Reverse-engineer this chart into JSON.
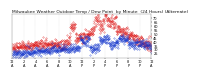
{
  "title": "Milwaukee Weather Outdoor Temp / Dew Point  by Minute  (24 Hours) (Alternate)",
  "title_fontsize": 3.2,
  "bg_color": "#ffffff",
  "plot_bg_color": "#ffffff",
  "grid_color": "#bbbbbb",
  "temp_color": "#dd1111",
  "dew_color": "#1133cc",
  "tick_fontsize": 2.5,
  "ylim": [
    20,
    75
  ],
  "xlim": [
    0,
    1440
  ],
  "num_points": 1440,
  "seed": 7,
  "yticks": [
    25,
    30,
    35,
    40,
    45,
    50,
    55,
    60,
    65,
    70
  ],
  "xtick_hours": [
    0,
    2,
    4,
    6,
    8,
    10,
    12,
    14,
    16,
    18,
    20,
    22,
    24
  ]
}
